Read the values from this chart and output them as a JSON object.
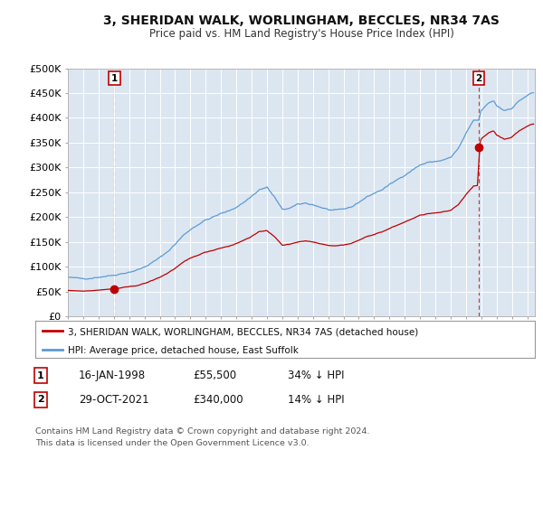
{
  "title": "3, SHERIDAN WALK, WORLINGHAM, BECCLES, NR34 7AS",
  "subtitle": "Price paid vs. HM Land Registry's House Price Index (HPI)",
  "ylim": [
    0,
    500000
  ],
  "yticks": [
    0,
    50000,
    100000,
    150000,
    200000,
    250000,
    300000,
    350000,
    400000,
    450000,
    500000
  ],
  "ytick_labels": [
    "£0",
    "£50K",
    "£100K",
    "£150K",
    "£200K",
    "£250K",
    "£300K",
    "£350K",
    "£400K",
    "£450K",
    "£500K"
  ],
  "xlim_start": 1995.0,
  "xlim_end": 2025.5,
  "xticks": [
    1995,
    1996,
    1997,
    1998,
    1999,
    2000,
    2001,
    2002,
    2003,
    2004,
    2005,
    2006,
    2007,
    2008,
    2009,
    2010,
    2011,
    2012,
    2013,
    2014,
    2015,
    2016,
    2017,
    2018,
    2019,
    2020,
    2021,
    2022,
    2023,
    2024,
    2025
  ],
  "hpi_color": "#5b9bd5",
  "price_color": "#c00000",
  "vline_color": "#c00000",
  "plot_bg_color": "#dce6f1",
  "marker1_date": 1998.04,
  "marker1_price": 55500,
  "marker2_date": 2021.83,
  "marker2_price": 340000,
  "legend_line1": "3, SHERIDAN WALK, WORLINGHAM, BECCLES, NR34 7AS (detached house)",
  "legend_line2": "HPI: Average price, detached house, East Suffolk",
  "footnote": "Contains HM Land Registry data © Crown copyright and database right 2024.\nThis data is licensed under the Open Government Licence v3.0.",
  "background_color": "#ffffff",
  "grid_color": "#ffffff"
}
